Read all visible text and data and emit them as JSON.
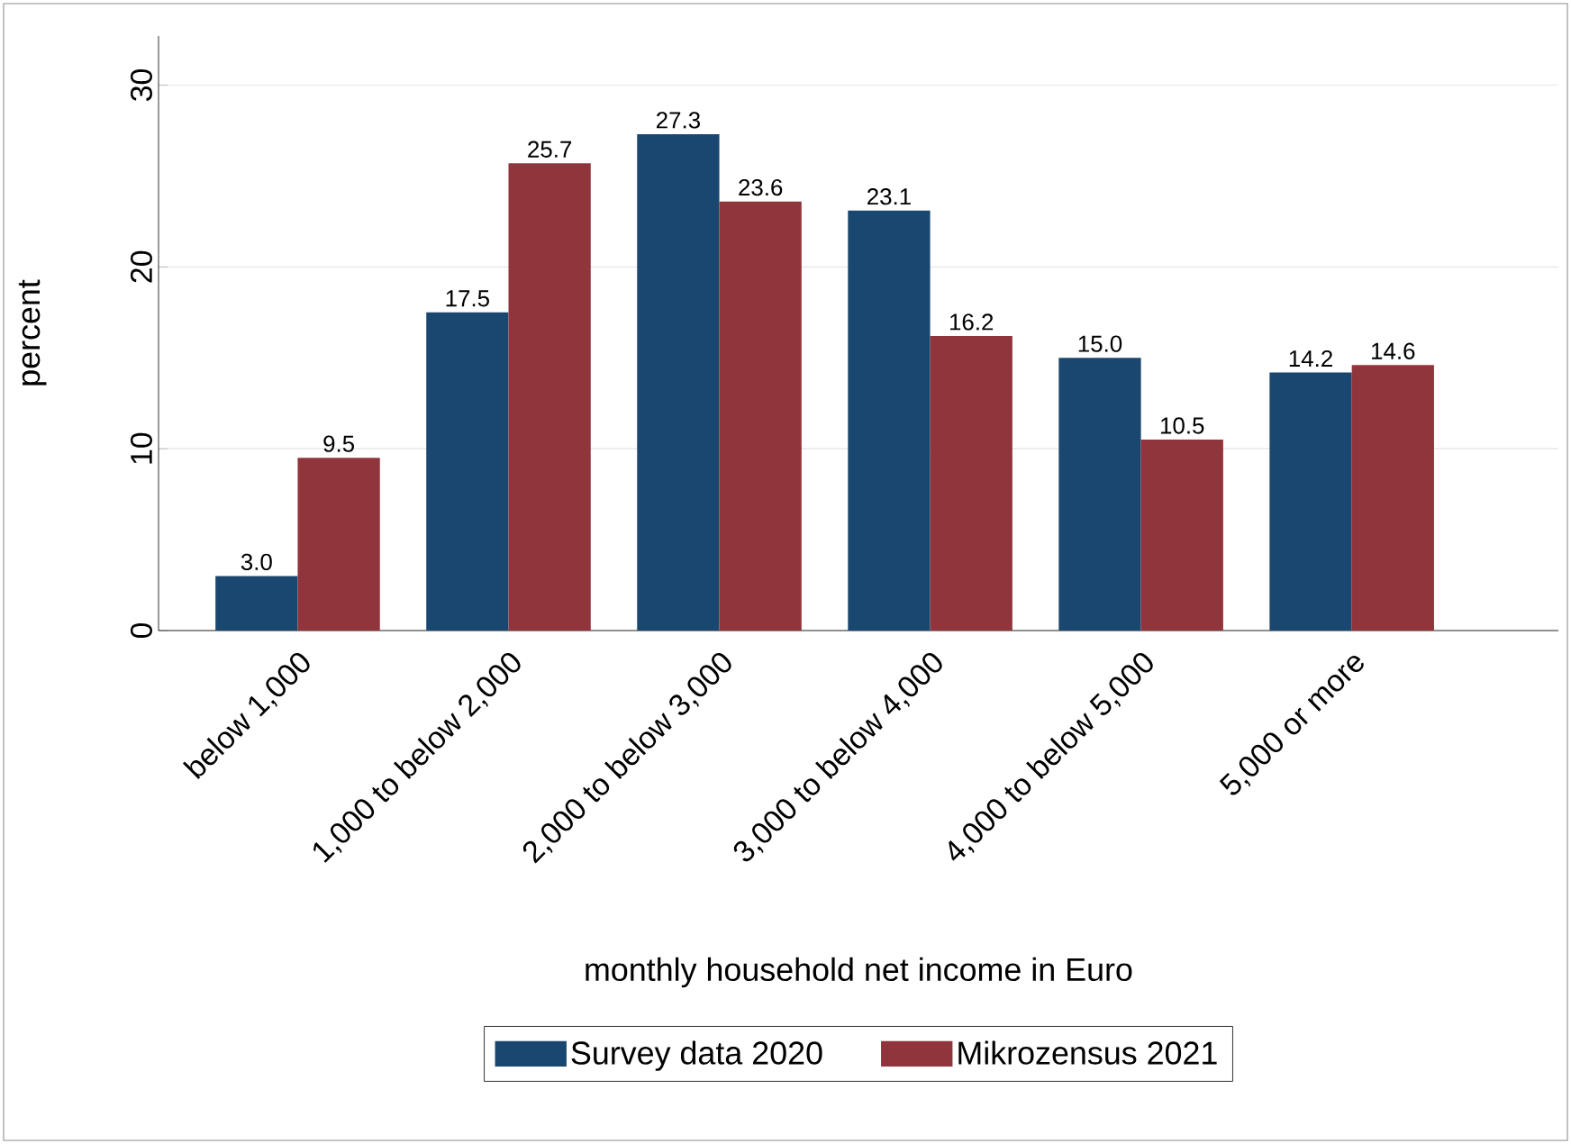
{
  "chart_data": {
    "type": "bar",
    "xlabel": "monthly household net income in Euro",
    "ylabel": "percent",
    "categories": [
      "below 1,000",
      "1,000 to below 2,000",
      "2,000 to below 3,000",
      "3,000 to below 4,000",
      "4,000 to below 5,000",
      "5,000 or more"
    ],
    "series": [
      {
        "name": "Survey data 2020",
        "color": "#1a476f",
        "values": [
          3.0,
          17.5,
          27.3,
          23.1,
          15.0,
          14.2
        ],
        "value_labels": [
          "3.0",
          "17.5",
          "27.3",
          "23.1",
          "15.0",
          "14.2"
        ]
      },
      {
        "name": "Mikrozensus 2021",
        "color": "#90353b",
        "values": [
          9.5,
          25.7,
          23.6,
          16.2,
          10.5,
          14.6
        ],
        "value_labels": [
          "9.5",
          "25.7",
          "23.6",
          "16.2",
          "10.5",
          "14.6"
        ]
      }
    ],
    "ylim": [
      0,
      32.7
    ],
    "yticks": [
      0,
      10,
      20,
      30
    ],
    "grid": "y",
    "legend": "bottom"
  }
}
